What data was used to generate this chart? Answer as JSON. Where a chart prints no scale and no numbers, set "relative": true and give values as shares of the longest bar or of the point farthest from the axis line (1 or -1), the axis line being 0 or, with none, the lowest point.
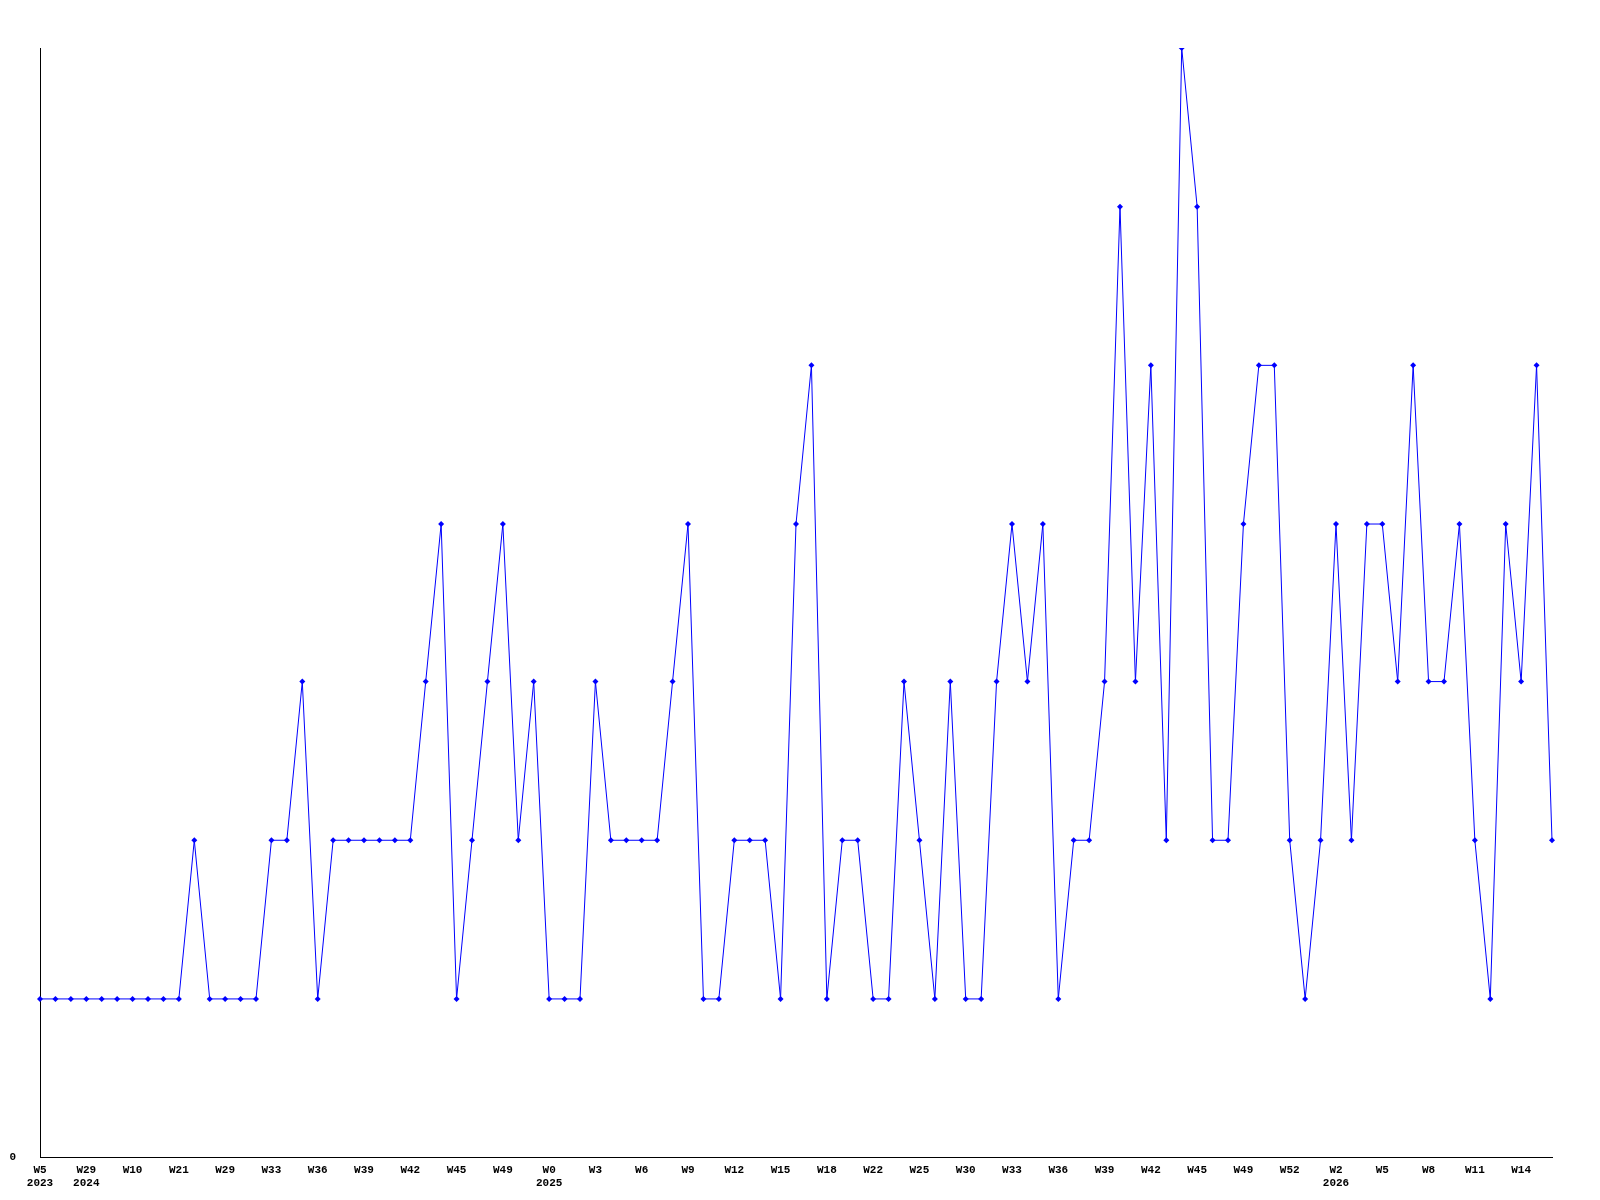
{
  "chart_data": {
    "type": "line",
    "relative": true,
    "color": "#0000ff",
    "marker": "diamond",
    "grid": false,
    "legend": false,
    "annotations": [
      "0"
    ],
    "categories": [
      "W5\n2023",
      null,
      null,
      "W29\n2024",
      null,
      null,
      "W10",
      null,
      null,
      "W21",
      null,
      null,
      "W29",
      null,
      null,
      "W33",
      null,
      null,
      "W36",
      null,
      null,
      "W39",
      null,
      null,
      "W42",
      null,
      null,
      "W45",
      null,
      null,
      "W49",
      null,
      null,
      "W0\n2025",
      null,
      null,
      "W3",
      null,
      null,
      "W6",
      null,
      null,
      "W9",
      null,
      null,
      "W12",
      null,
      null,
      "W15",
      null,
      null,
      "W18",
      null,
      null,
      "W22",
      null,
      null,
      "W25",
      null,
      null,
      "W30",
      null,
      null,
      "W33",
      null,
      null,
      "W36",
      null,
      null,
      "W39",
      null,
      null,
      "W42",
      null,
      null,
      "W45",
      null,
      null,
      "W49",
      null,
      null,
      "W52",
      null,
      null,
      "W2\n2026",
      null,
      null,
      "W5",
      null,
      null,
      "W8",
      null,
      null,
      "W11",
      null,
      null,
      "W14",
      null,
      null
    ],
    "values": [
      0.143,
      0.143,
      0.143,
      0.143,
      0.143,
      0.143,
      0.143,
      0.143,
      0.143,
      0.143,
      0.286,
      0.143,
      0.143,
      0.143,
      0.143,
      0.286,
      0.286,
      0.429,
      0.143,
      0.286,
      0.286,
      0.286,
      0.286,
      0.286,
      0.286,
      0.429,
      0.571,
      0.143,
      0.286,
      0.429,
      0.571,
      0.286,
      0.429,
      0.143,
      0.143,
      0.143,
      0.429,
      0.286,
      0.286,
      0.286,
      0.286,
      0.429,
      0.571,
      0.143,
      0.143,
      0.286,
      0.286,
      0.286,
      0.143,
      0.571,
      0.714,
      0.143,
      0.286,
      0.286,
      0.143,
      0.143,
      0.429,
      0.286,
      0.143,
      0.429,
      0.143,
      0.143,
      0.429,
      0.571,
      0.429,
      0.571,
      0.143,
      0.286,
      0.286,
      0.429,
      0.857,
      0.429,
      0.714,
      0.286,
      1,
      0.857,
      0.286,
      0.286,
      0.571,
      0.714,
      0.714,
      0.286,
      0.143,
      0.286,
      0.571,
      0.286,
      0.571,
      0.571,
      0.429,
      0.714,
      0.429,
      0.429,
      0.571,
      0.286,
      0.143,
      0.571,
      0.429,
      0.714,
      0.286
    ]
  }
}
